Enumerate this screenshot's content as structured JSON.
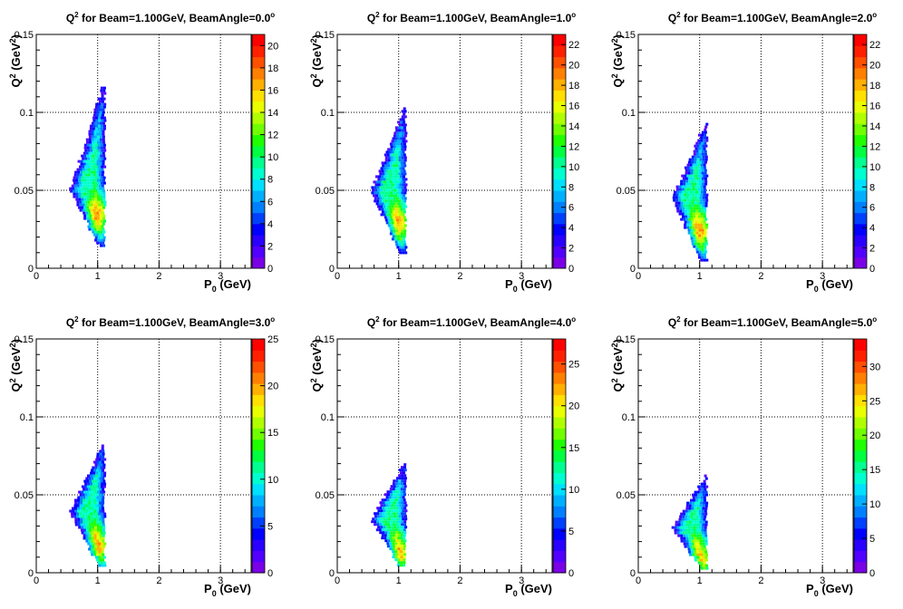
{
  "chart_data": [
    {
      "type": "heatmap",
      "title_prefix": "Q",
      "title_sup": "2",
      "title_rest": " for Beam=1.100GeV, BeamAngle=0.0",
      "title_degree": "o",
      "xlabel_main": "P",
      "xlabel_sub": "0",
      "xlabel_rest": " (GeV)",
      "ylabel_main": "Q",
      "ylabel_sup": "2",
      "ylabel_mid": " (GeV",
      "ylabel_sup2": "2",
      "ylabel_end": ")",
      "xlim": [
        0,
        3.5
      ],
      "ylim": [
        0,
        0.15
      ],
      "xticks": [
        "0",
        "1",
        "2",
        "3"
      ],
      "yticks": [
        "0",
        "0.05",
        "0.1",
        "0.15"
      ],
      "zlim": [
        0,
        21
      ],
      "zticks": [
        "0",
        "2",
        "4",
        "6",
        "8",
        "10",
        "12",
        "14",
        "16",
        "18",
        "20"
      ],
      "grid": true,
      "region": {
        "x_min": 0.55,
        "x_max": 1.1,
        "y_top": 0.12,
        "y_bottom": 0.015,
        "y_left": 0.05,
        "peak": [
          1.05,
          0.035
        ]
      }
    },
    {
      "type": "heatmap",
      "title_prefix": "Q",
      "title_sup": "2",
      "title_rest": " for Beam=1.100GeV, BeamAngle=1.0",
      "title_degree": "o",
      "xlabel_main": "P",
      "xlabel_sub": "0",
      "xlabel_rest": " (GeV)",
      "ylabel_main": "Q",
      "ylabel_sup": "2",
      "ylabel_mid": " (GeV",
      "ylabel_sup2": "2",
      "ylabel_end": ")",
      "xlim": [
        0,
        3.5
      ],
      "ylim": [
        0,
        0.15
      ],
      "xticks": [
        "0",
        "1",
        "2",
        "3"
      ],
      "yticks": [
        "0",
        "0.05",
        "0.1",
        "0.15"
      ],
      "zlim": [
        0,
        23
      ],
      "zticks": [
        "0",
        "2",
        "4",
        "6",
        "8",
        "10",
        "12",
        "14",
        "16",
        "18",
        "20",
        "22"
      ],
      "grid": true,
      "region": {
        "x_min": 0.55,
        "x_max": 1.1,
        "y_top": 0.105,
        "y_bottom": 0.01,
        "y_left": 0.05,
        "peak": [
          1.05,
          0.03
        ]
      }
    },
    {
      "type": "heatmap",
      "title_prefix": "Q",
      "title_sup": "2",
      "title_rest": " for Beam=1.100GeV, BeamAngle=2.0",
      "title_degree": "o",
      "xlabel_main": "P",
      "xlabel_sub": "0",
      "xlabel_rest": " (GeV)",
      "ylabel_main": "Q",
      "ylabel_sup": "2",
      "ylabel_mid": " (GeV",
      "ylabel_sup2": "2",
      "ylabel_end": ")",
      "xlim": [
        0,
        3.5
      ],
      "ylim": [
        0,
        0.15
      ],
      "xticks": [
        "0",
        "1",
        "2",
        "3"
      ],
      "yticks": [
        "0",
        "0.05",
        "0.1",
        "0.15"
      ],
      "zlim": [
        0,
        23
      ],
      "zticks": [
        "0",
        "2",
        "4",
        "6",
        "8",
        "10",
        "12",
        "14",
        "16",
        "18",
        "20",
        "22"
      ],
      "grid": true,
      "region": {
        "x_min": 0.55,
        "x_max": 1.1,
        "y_top": 0.095,
        "y_bottom": 0.006,
        "y_left": 0.045,
        "peak": [
          1.05,
          0.025
        ]
      }
    },
    {
      "type": "heatmap",
      "title_prefix": "Q",
      "title_sup": "2",
      "title_rest": " for Beam=1.100GeV, BeamAngle=3.0",
      "title_degree": "o",
      "xlabel_main": "P",
      "xlabel_sub": "0",
      "xlabel_rest": " (GeV)",
      "ylabel_main": "Q",
      "ylabel_sup": "2",
      "ylabel_mid": " (GeV",
      "ylabel_sup2": "2",
      "ylabel_end": ")",
      "xlim": [
        0,
        3.5
      ],
      "ylim": [
        0,
        0.15
      ],
      "xticks": [
        "0",
        "1",
        "2",
        "3"
      ],
      "yticks": [
        "0",
        "0.05",
        "0.1",
        "0.15"
      ],
      "zlim": [
        0,
        25
      ],
      "zticks": [
        "0",
        "5",
        "10",
        "15",
        "20",
        "25"
      ],
      "grid": true,
      "region": {
        "x_min": 0.55,
        "x_max": 1.1,
        "y_top": 0.084,
        "y_bottom": 0.005,
        "y_left": 0.04,
        "peak": [
          1.05,
          0.018
        ]
      }
    },
    {
      "type": "heatmap",
      "title_prefix": "Q",
      "title_sup": "2",
      "title_rest": " for Beam=1.100GeV, BeamAngle=4.0",
      "title_degree": "o",
      "xlabel_main": "P",
      "xlabel_sub": "0",
      "xlabel_rest": " (GeV)",
      "ylabel_main": "Q",
      "ylabel_sup": "2",
      "ylabel_mid": " (GeV",
      "ylabel_sup2": "2",
      "ylabel_end": ")",
      "xlim": [
        0,
        3.5
      ],
      "ylim": [
        0,
        0.15
      ],
      "xticks": [
        "0",
        "1",
        "2",
        "3"
      ],
      "yticks": [
        "0",
        "0.05",
        "0.1",
        "0.15"
      ],
      "zlim": [
        0,
        28
      ],
      "zticks": [
        "0",
        "5",
        "10",
        "15",
        "20",
        "25"
      ],
      "grid": true,
      "region": {
        "x_min": 0.55,
        "x_max": 1.1,
        "y_top": 0.072,
        "y_bottom": 0.004,
        "y_left": 0.035,
        "peak": [
          1.05,
          0.013
        ]
      }
    },
    {
      "type": "heatmap",
      "title_prefix": "Q",
      "title_sup": "2",
      "title_rest": " for Beam=1.100GeV, BeamAngle=5.0",
      "title_degree": "o",
      "xlabel_main": "P",
      "xlabel_sub": "0",
      "xlabel_rest": " (GeV)",
      "ylabel_main": "Q",
      "ylabel_sup": "2",
      "ylabel_mid": " (GeV",
      "ylabel_sup2": "2",
      "ylabel_end": ")",
      "xlim": [
        0,
        3.5
      ],
      "ylim": [
        0,
        0.15
      ],
      "xticks": [
        "0",
        "1",
        "2",
        "3"
      ],
      "yticks": [
        "0",
        "0.05",
        "0.1",
        "0.15"
      ],
      "zlim": [
        0,
        34
      ],
      "zticks": [
        "0",
        "5",
        "10",
        "15",
        "20",
        "25",
        "30"
      ],
      "grid": true,
      "region": {
        "x_min": 0.55,
        "x_max": 1.1,
        "y_top": 0.063,
        "y_bottom": 0.003,
        "y_left": 0.03,
        "peak": [
          1.05,
          0.01
        ]
      }
    }
  ]
}
